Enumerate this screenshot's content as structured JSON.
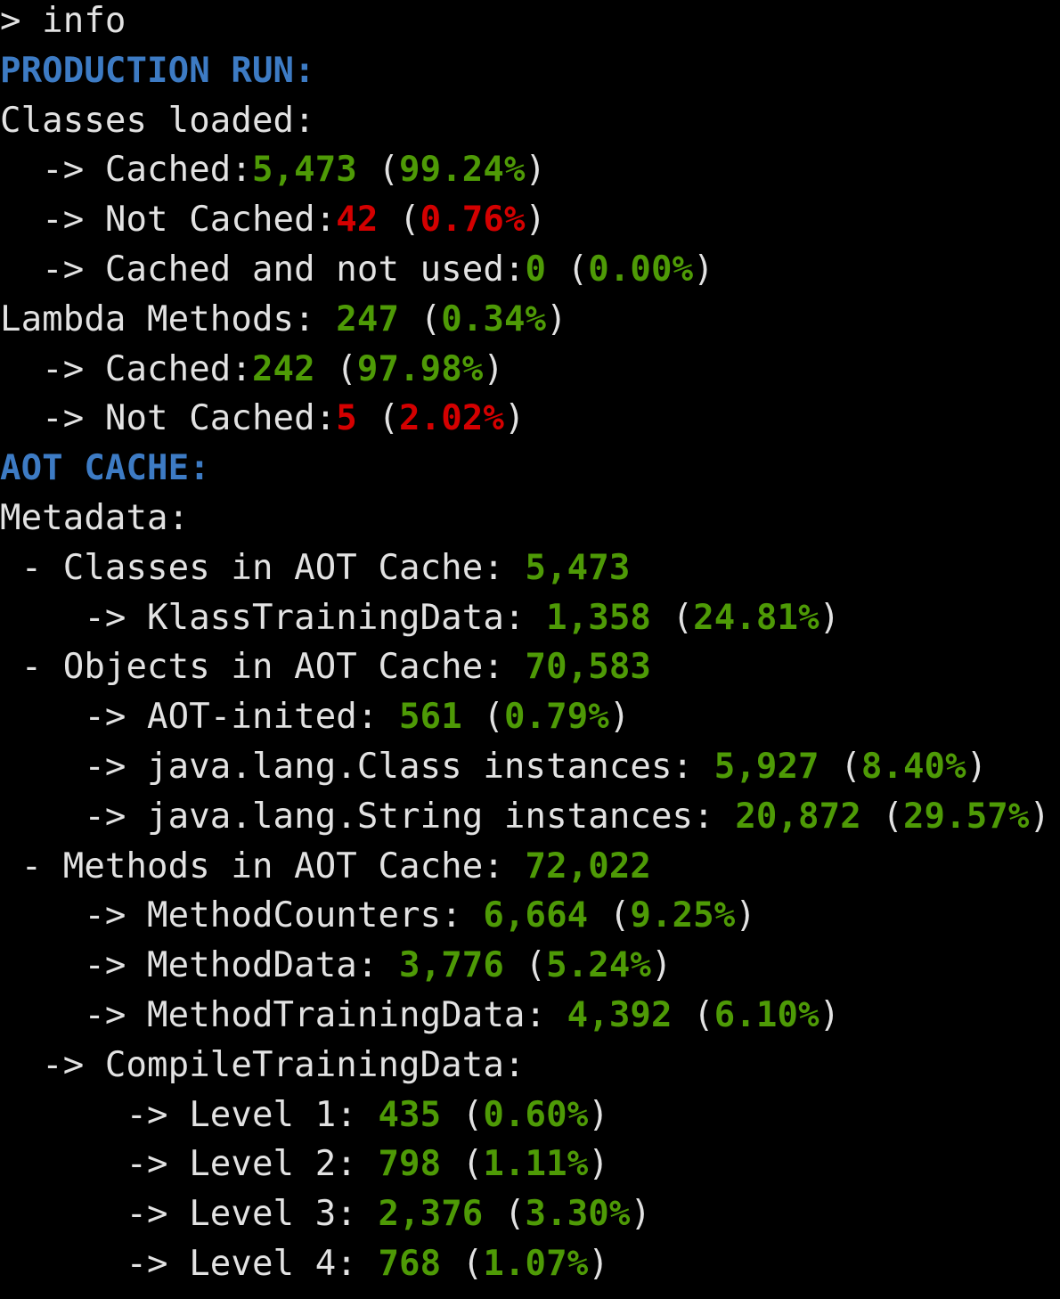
{
  "colors": {
    "header": "#3d7bc4",
    "good": "#4e9a06",
    "bad": "#d40000",
    "text": "#e2e2e2",
    "background": "#000000"
  },
  "lines": [
    [
      {
        "t": "> info",
        "c": "w"
      }
    ],
    [
      {
        "t": "PRODUCTION RUN:",
        "c": "h"
      }
    ],
    [
      {
        "t": "Classes loaded:",
        "c": "w"
      }
    ],
    [
      {
        "t": "  -> Cached:",
        "c": "w"
      },
      {
        "t": "5,473",
        "c": "g"
      },
      {
        "t": " (",
        "c": "w"
      },
      {
        "t": "99.24%",
        "c": "g"
      },
      {
        "t": ")",
        "c": "w"
      }
    ],
    [
      {
        "t": "  -> Not Cached:",
        "c": "w"
      },
      {
        "t": "42",
        "c": "r"
      },
      {
        "t": " (",
        "c": "w"
      },
      {
        "t": "0.76%",
        "c": "r"
      },
      {
        "t": ")",
        "c": "w"
      }
    ],
    [
      {
        "t": "  -> Cached and not used:",
        "c": "w"
      },
      {
        "t": "0",
        "c": "g"
      },
      {
        "t": " (",
        "c": "w"
      },
      {
        "t": "0.00%",
        "c": "g"
      },
      {
        "t": ")",
        "c": "w"
      }
    ],
    [
      {
        "t": "Lambda Methods: ",
        "c": "w"
      },
      {
        "t": "247",
        "c": "g"
      },
      {
        "t": " (",
        "c": "w"
      },
      {
        "t": "0.34%",
        "c": "g"
      },
      {
        "t": ")",
        "c": "w"
      }
    ],
    [
      {
        "t": "  -> Cached:",
        "c": "w"
      },
      {
        "t": "242",
        "c": "g"
      },
      {
        "t": " (",
        "c": "w"
      },
      {
        "t": "97.98%",
        "c": "g"
      },
      {
        "t": ")",
        "c": "w"
      }
    ],
    [
      {
        "t": "  -> Not Cached:",
        "c": "w"
      },
      {
        "t": "5",
        "c": "r"
      },
      {
        "t": " (",
        "c": "w"
      },
      {
        "t": "2.02%",
        "c": "r"
      },
      {
        "t": ")",
        "c": "w"
      }
    ],
    [
      {
        "t": "AOT CACHE:",
        "c": "h"
      }
    ],
    [
      {
        "t": "Metadata:",
        "c": "w"
      }
    ],
    [
      {
        "t": " - Classes in AOT Cache: ",
        "c": "w"
      },
      {
        "t": "5,473",
        "c": "g"
      }
    ],
    [
      {
        "t": "    -> KlassTrainingData: ",
        "c": "w"
      },
      {
        "t": "1,358",
        "c": "g"
      },
      {
        "t": " (",
        "c": "w"
      },
      {
        "t": "24.81%",
        "c": "g"
      },
      {
        "t": ")",
        "c": "w"
      }
    ],
    [
      {
        "t": " - Objects in AOT Cache: ",
        "c": "w"
      },
      {
        "t": "70,583",
        "c": "g"
      }
    ],
    [
      {
        "t": "    -> AOT-inited: ",
        "c": "w"
      },
      {
        "t": "561",
        "c": "g"
      },
      {
        "t": " (",
        "c": "w"
      },
      {
        "t": "0.79%",
        "c": "g"
      },
      {
        "t": ")",
        "c": "w"
      }
    ],
    [
      {
        "t": "    -> java.lang.Class instances: ",
        "c": "w"
      },
      {
        "t": "5,927",
        "c": "g"
      },
      {
        "t": " (",
        "c": "w"
      },
      {
        "t": "8.40%",
        "c": "g"
      },
      {
        "t": ")",
        "c": "w"
      }
    ],
    [
      {
        "t": "    -> java.lang.String instances: ",
        "c": "w"
      },
      {
        "t": "20,872",
        "c": "g"
      },
      {
        "t": " (",
        "c": "w"
      },
      {
        "t": "29.57%",
        "c": "g"
      },
      {
        "t": ")",
        "c": "w"
      }
    ],
    [
      {
        "t": " - Methods in AOT Cache: ",
        "c": "w"
      },
      {
        "t": "72,022",
        "c": "g"
      }
    ],
    [
      {
        "t": "    -> MethodCounters: ",
        "c": "w"
      },
      {
        "t": "6,664",
        "c": "g"
      },
      {
        "t": " (",
        "c": "w"
      },
      {
        "t": "9.25%",
        "c": "g"
      },
      {
        "t": ")",
        "c": "w"
      }
    ],
    [
      {
        "t": "    -> MethodData: ",
        "c": "w"
      },
      {
        "t": "3,776",
        "c": "g"
      },
      {
        "t": " (",
        "c": "w"
      },
      {
        "t": "5.24%",
        "c": "g"
      },
      {
        "t": ")",
        "c": "w"
      }
    ],
    [
      {
        "t": "    -> MethodTrainingData: ",
        "c": "w"
      },
      {
        "t": "4,392",
        "c": "g"
      },
      {
        "t": " (",
        "c": "w"
      },
      {
        "t": "6.10%",
        "c": "g"
      },
      {
        "t": ")",
        "c": "w"
      }
    ],
    [
      {
        "t": "  -> CompileTrainingData:",
        "c": "w"
      }
    ],
    [
      {
        "t": "      -> Level 1: ",
        "c": "w"
      },
      {
        "t": "435",
        "c": "g"
      },
      {
        "t": " (",
        "c": "w"
      },
      {
        "t": "0.60%",
        "c": "g"
      },
      {
        "t": ")",
        "c": "w"
      }
    ],
    [
      {
        "t": "      -> Level 2: ",
        "c": "w"
      },
      {
        "t": "798",
        "c": "g"
      },
      {
        "t": " (",
        "c": "w"
      },
      {
        "t": "1.11%",
        "c": "g"
      },
      {
        "t": ")",
        "c": "w"
      }
    ],
    [
      {
        "t": "      -> Level 3: ",
        "c": "w"
      },
      {
        "t": "2,376",
        "c": "g"
      },
      {
        "t": " (",
        "c": "w"
      },
      {
        "t": "3.30%",
        "c": "g"
      },
      {
        "t": ")",
        "c": "w"
      }
    ],
    [
      {
        "t": "      -> Level 4: ",
        "c": "w"
      },
      {
        "t": "768",
        "c": "g"
      },
      {
        "t": " (",
        "c": "w"
      },
      {
        "t": "1.07%",
        "c": "g"
      },
      {
        "t": ")",
        "c": "w"
      }
    ]
  ]
}
